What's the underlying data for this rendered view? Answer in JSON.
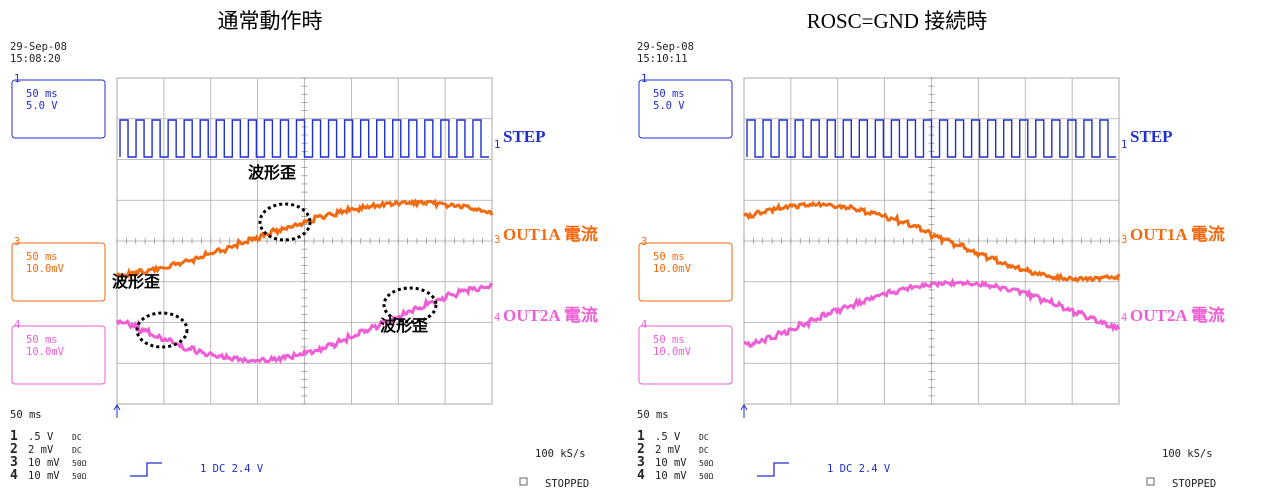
{
  "panels": [
    {
      "title": "通常動作時",
      "date": "29-Sep-08",
      "time": "15:08:20",
      "channels": [
        {
          "number": "1",
          "timebase": "50 ms",
          "scale": "5.0 V"
        },
        {
          "number": "3",
          "timebase": "50 ms",
          "scale": "10.0mV"
        },
        {
          "number": "4",
          "timebase": "50 ms",
          "scale": "10.0mV"
        }
      ],
      "trace_labels": [
        "STEP",
        "OUT1A 電流",
        "OUT2A 電流"
      ],
      "annotations": [
        "波形歪",
        "波形歪",
        "波形歪"
      ],
      "timebase": "50 ms",
      "settings": [
        [
          "1",
          ".5  V",
          "DC"
        ],
        [
          "2",
          "2 mV",
          "DC"
        ],
        [
          "3",
          "10 mV",
          "50Ω"
        ],
        [
          "4",
          "10 mV",
          "50Ω"
        ]
      ],
      "trigger": "1 DC 2.4 V",
      "sample_rate": "100 kS/s",
      "status": "STOPPED"
    },
    {
      "title": "ROSC=GND 接続時",
      "date": "29-Sep-08",
      "time": "15:10:11",
      "channels": [
        {
          "number": "1",
          "timebase": "50 ms",
          "scale": "5.0 V"
        },
        {
          "number": "3",
          "timebase": "50 ms",
          "scale": "10.0mV"
        },
        {
          "number": "4",
          "timebase": "50 ms",
          "scale": "10.0mV"
        }
      ],
      "trace_labels": [
        "STEP",
        "OUT1A 電流",
        "OUT2A 電流"
      ],
      "annotations": [],
      "timebase": "50 ms",
      "settings": [
        [
          "1",
          ".5  V",
          "DC"
        ],
        [
          "2",
          "2 mV",
          "DC"
        ],
        [
          "3",
          "10 mV",
          "50Ω"
        ],
        [
          "4",
          "10 mV",
          "50Ω"
        ]
      ],
      "trigger": "1 DC 2.4 V",
      "sample_rate": "100 kS/s",
      "status": "STOPPED"
    }
  ]
}
